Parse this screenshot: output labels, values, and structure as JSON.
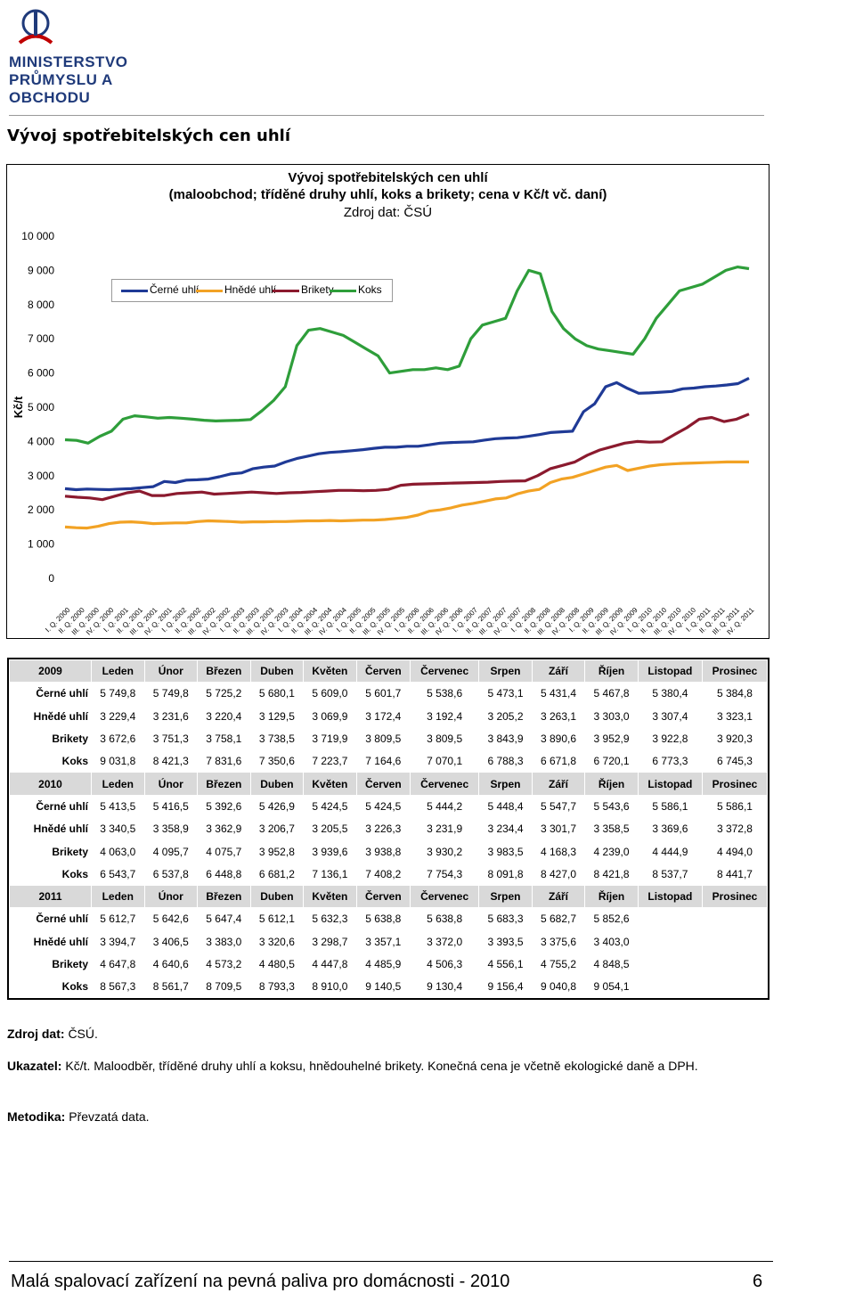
{
  "header": {
    "logo_line1": "MINISTERSTVO",
    "logo_line2": "PRŮMYSLU A OBCHODU",
    "logo_colors": {
      "blue": "#1f3a7a",
      "red": "#c00000"
    }
  },
  "page_heading": "Vývoj spotřebitelských cen uhlí",
  "chart_data": {
    "type": "line",
    "title_line1": "Vývoj spotřebitelských cen uhlí",
    "title_line2": "(maloobchod; tříděné druhy uhlí, koks a brikety; cena v Kč/t vč. daní)",
    "subtitle": "Zdroj dat: ČSÚ",
    "ylabel": "Kč/t",
    "xlabel": "",
    "ylim": [
      0,
      10000
    ],
    "y_ticks": [
      "0",
      "1 000",
      "2 000",
      "3 000",
      "4 000",
      "5 000",
      "6 000",
      "7 000",
      "8 000",
      "9 000",
      "10 000"
    ],
    "grid": false,
    "legend_position": "top-left",
    "x_ticks": [
      "I. Q. 2000",
      "II. Q. 2000",
      "III. Q. 2000",
      "IV. Q. 2000",
      "I. Q. 2001",
      "II. Q. 2001",
      "III. Q. 2001",
      "IV. Q. 2001",
      "I. Q. 2002",
      "II. Q. 2002",
      "III. Q. 2002",
      "IV. Q. 2002",
      "I. Q. 2003",
      "II. Q. 2003",
      "III. Q. 2003",
      "IV. Q. 2003",
      "I. Q. 2004",
      "II. Q. 2004",
      "III. Q. 2004",
      "IV. Q. 2004",
      "I. Q. 2005",
      "II. Q. 2005",
      "III. Q. 2005",
      "IV. Q. 2005",
      "I. Q. 2006",
      "II. Q. 2006",
      "III. Q. 2006",
      "IV. Q. 2006",
      "I. Q. 2007",
      "II. Q. 2007",
      "III. Q. 2007",
      "IV. Q. 2007",
      "I. Q. 2008",
      "II. Q. 2008",
      "III. Q. 2008",
      "IV. Q. 2008",
      "I. Q. 2009",
      "II. Q. 2009",
      "III. Q. 2009",
      "IV. Q. 2009",
      "I. Q. 2010",
      "II. Q. 2010",
      "III. Q. 2010",
      "IV. Q. 2010",
      "I. Q. 2011",
      "II. Q. 2011",
      "III. Q. 2011",
      "IV. Q. 2011"
    ],
    "series": [
      {
        "name": "Černé uhlí",
        "color": "#1f3a96",
        "values": [
          2620,
          2590,
          2610,
          2600,
          2590,
          2610,
          2620,
          2650,
          2680,
          2830,
          2800,
          2870,
          2880,
          2900,
          2970,
          3050,
          3080,
          3200,
          3250,
          3280,
          3400,
          3500,
          3570,
          3640,
          3680,
          3700,
          3730,
          3760,
          3800,
          3830,
          3830,
          3860,
          3860,
          3900,
          3950,
          3970,
          3980,
          3990,
          4040,
          4080,
          4100,
          4110,
          4150,
          4200,
          4260,
          4280,
          4300,
          4870,
          5100,
          5600,
          5720,
          5550,
          5410,
          5420,
          5440,
          5460,
          5540,
          5560,
          5600,
          5620,
          5650,
          5690,
          5850
        ]
      },
      {
        "name": "Hnědé uhlí",
        "color": "#f2a224",
        "values": [
          1500,
          1480,
          1470,
          1520,
          1600,
          1640,
          1650,
          1630,
          1600,
          1610,
          1620,
          1620,
          1660,
          1680,
          1670,
          1660,
          1640,
          1650,
          1650,
          1660,
          1660,
          1670,
          1680,
          1680,
          1690,
          1680,
          1690,
          1700,
          1700,
          1720,
          1750,
          1780,
          1850,
          1960,
          2000,
          2060,
          2140,
          2190,
          2250,
          2320,
          2350,
          2470,
          2550,
          2600,
          2800,
          2900,
          2950,
          3050,
          3150,
          3250,
          3300,
          3150,
          3220,
          3280,
          3320,
          3340,
          3360,
          3370,
          3380,
          3390,
          3400,
          3400,
          3400
        ]
      },
      {
        "name": "Brikety",
        "color": "#8b1a2e",
        "values": [
          2400,
          2370,
          2350,
          2300,
          2400,
          2500,
          2550,
          2420,
          2420,
          2480,
          2500,
          2520,
          2460,
          2480,
          2500,
          2520,
          2500,
          2480,
          2500,
          2510,
          2530,
          2550,
          2570,
          2570,
          2560,
          2570,
          2600,
          2720,
          2750,
          2760,
          2770,
          2780,
          2790,
          2800,
          2810,
          2830,
          2840,
          2850,
          3000,
          3200,
          3300,
          3400,
          3600,
          3750,
          3850,
          3950,
          4000,
          3980,
          3990,
          4200,
          4400,
          4650,
          4700,
          4580,
          4650,
          4800
        ]
      },
      {
        "name": "Koks",
        "color": "#2e9e3a",
        "values": [
          4050,
          4030,
          3950,
          4150,
          4300,
          4650,
          4750,
          4720,
          4680,
          4700,
          4680,
          4650,
          4620,
          4600,
          4610,
          4620,
          4640,
          4900,
          5200,
          5600,
          6800,
          7250,
          7300,
          7200,
          7100,
          6900,
          6700,
          6500,
          6000,
          6050,
          6100,
          6100,
          6150,
          6100,
          6200,
          7000,
          7400,
          7500,
          7600,
          8400,
          9000,
          8900,
          7800,
          7300,
          7000,
          6800,
          6700,
          6650,
          6600,
          6550,
          7000,
          7600,
          8000,
          8400,
          8500,
          8600,
          8800,
          9000,
          9100,
          9050
        ]
      }
    ]
  },
  "table": {
    "blocks": [
      {
        "year": "2009",
        "months": [
          "Leden",
          "Únor",
          "Březen",
          "Duben",
          "Květen",
          "Červen",
          "Červenec",
          "Srpen",
          "Září",
          "Říjen",
          "Listopad",
          "Prosinec"
        ],
        "rows": [
          {
            "label": "Černé uhlí",
            "values": [
              "5 749,8",
              "5 749,8",
              "5 725,2",
              "5 680,1",
              "5 609,0",
              "5 601,7",
              "5 538,6",
              "5 473,1",
              "5 431,4",
              "5 467,8",
              "5 380,4",
              "5 384,8"
            ]
          },
          {
            "label": "Hnědé uhlí",
            "values": [
              "3 229,4",
              "3 231,6",
              "3 220,4",
              "3 129,5",
              "3 069,9",
              "3 172,4",
              "3 192,4",
              "3 205,2",
              "3 263,1",
              "3 303,0",
              "3 307,4",
              "3 323,1"
            ]
          },
          {
            "label": "Brikety",
            "values": [
              "3 672,6",
              "3 751,3",
              "3 758,1",
              "3 738,5",
              "3 719,9",
              "3 809,5",
              "3 809,5",
              "3 843,9",
              "3 890,6",
              "3 952,9",
              "3 922,8",
              "3 920,3"
            ]
          },
          {
            "label": "Koks",
            "values": [
              "9 031,8",
              "8 421,3",
              "7 831,6",
              "7 350,6",
              "7 223,7",
              "7 164,6",
              "7 070,1",
              "6 788,3",
              "6 671,8",
              "6 720,1",
              "6 773,3",
              "6 745,3"
            ]
          }
        ]
      },
      {
        "year": "2010",
        "months": [
          "Leden",
          "Únor",
          "Březen",
          "Duben",
          "Květen",
          "Červen",
          "Červenec",
          "Srpen",
          "Září",
          "Říjen",
          "Listopad",
          "Prosinec"
        ],
        "rows": [
          {
            "label": "Černé uhlí",
            "values": [
              "5 413,5",
              "5 416,5",
              "5 392,6",
              "5 426,9",
              "5 424,5",
              "5 424,5",
              "5 444,2",
              "5 448,4",
              "5 547,7",
              "5 543,6",
              "5 586,1",
              "5 586,1"
            ]
          },
          {
            "label": "Hnědé uhlí",
            "values": [
              "3 340,5",
              "3 358,9",
              "3 362,9",
              "3 206,7",
              "3 205,5",
              "3 226,3",
              "3 231,9",
              "3 234,4",
              "3 301,7",
              "3 358,5",
              "3 369,6",
              "3 372,8"
            ]
          },
          {
            "label": "Brikety",
            "values": [
              "4 063,0",
              "4 095,7",
              "4 075,7",
              "3 952,8",
              "3 939,6",
              "3 938,8",
              "3 930,2",
              "3 983,5",
              "4 168,3",
              "4 239,0",
              "4 444,9",
              "4 494,0"
            ]
          },
          {
            "label": "Koks",
            "values": [
              "6 543,7",
              "6 537,8",
              "6 448,8",
              "6 681,2",
              "7 136,1",
              "7 408,2",
              "7 754,3",
              "8 091,8",
              "8 427,0",
              "8 421,8",
              "8 537,7",
              "8 441,7"
            ]
          }
        ]
      },
      {
        "year": "2011",
        "months": [
          "Leden",
          "Únor",
          "Březen",
          "Duben",
          "Květen",
          "Červen",
          "Červenec",
          "Srpen",
          "Září",
          "Říjen",
          "Listopad",
          "Prosinec"
        ],
        "rows": [
          {
            "label": "Černé uhlí",
            "values": [
              "5 612,7",
              "5 642,6",
              "5 647,4",
              "5 612,1",
              "5 632,3",
              "5 638,8",
              "5 638,8",
              "5 683,3",
              "5 682,7",
              "5 852,6",
              "",
              ""
            ]
          },
          {
            "label": "Hnědé uhlí",
            "values": [
              "3 394,7",
              "3 406,5",
              "3 383,0",
              "3 320,6",
              "3 298,7",
              "3 357,1",
              "3 372,0",
              "3 393,5",
              "3 375,6",
              "3 403,0",
              "",
              ""
            ]
          },
          {
            "label": "Brikety",
            "values": [
              "4 647,8",
              "4 640,6",
              "4 573,2",
              "4 480,5",
              "4 447,8",
              "4 485,9",
              "4 506,3",
              "4 556,1",
              "4 755,2",
              "4 848,5",
              "",
              ""
            ]
          },
          {
            "label": "Koks",
            "values": [
              "8 567,3",
              "8 561,7",
              "8 709,5",
              "8 793,3",
              "8 910,0",
              "9 140,5",
              "9 130,4",
              "9 156,4",
              "9 040,8",
              "9 054,1",
              "",
              ""
            ]
          }
        ]
      }
    ]
  },
  "notes": {
    "source_label": "Zdroj dat:",
    "source_value": "ČSÚ.",
    "indicator_label": "Ukazatel:",
    "indicator_value": "Kč/t. Maloodběr, tříděné druhy uhlí a koksu, hnědouhelné brikety. Konečná cena je včetně ekologické daně a DPH.",
    "method_label": "Metodika:",
    "method_value": "Převzatá data."
  },
  "footer": {
    "title": "Malá spalovací zařízení na pevná paliva pro domácnosti - 2010",
    "page": "6"
  }
}
